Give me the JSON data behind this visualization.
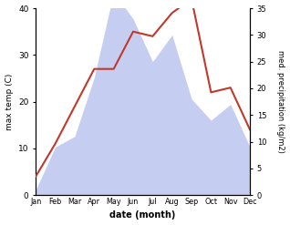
{
  "months": [
    "Jan",
    "Feb",
    "Mar",
    "Apr",
    "May",
    "Jun",
    "Jul",
    "Aug",
    "Sep",
    "Oct",
    "Nov",
    "Dec"
  ],
  "month_indices": [
    1,
    2,
    3,
    4,
    5,
    6,
    7,
    8,
    9,
    10,
    11,
    12
  ],
  "temperature": [
    4,
    11,
    19,
    27,
    27,
    35,
    34,
    39,
    42,
    22,
    23,
    14
  ],
  "precipitation": [
    1,
    9,
    11,
    22,
    38,
    33,
    25,
    30,
    18,
    14,
    17,
    9
  ],
  "temp_color": "#c0392b",
  "precip_fill_color": "#c5cdf0",
  "temp_ylim": [
    0,
    40
  ],
  "precip_ylim": [
    0,
    35
  ],
  "temp_yticks": [
    0,
    10,
    20,
    30,
    40
  ],
  "precip_yticks": [
    0,
    5,
    10,
    15,
    20,
    25,
    30,
    35
  ],
  "xlabel": "date (month)",
  "ylabel_left": "max temp (C)",
  "ylabel_right": "med. precipitation (kg/m2)",
  "figsize": [
    3.18,
    2.47
  ],
  "dpi": 100
}
